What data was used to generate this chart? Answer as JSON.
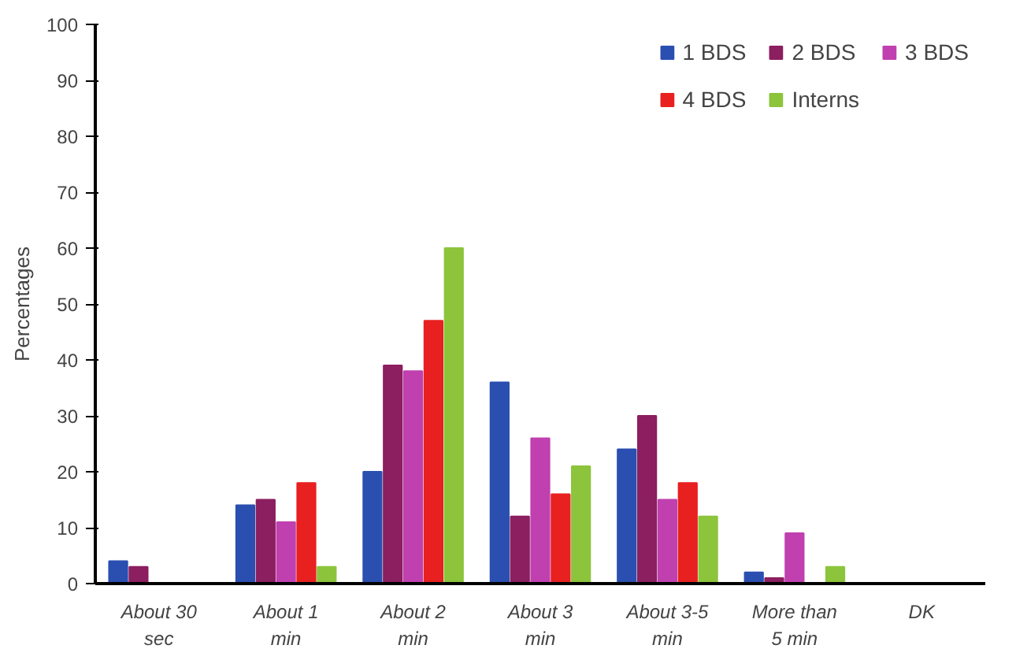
{
  "chart_data": {
    "type": "bar",
    "ylabel": "Percentages",
    "categories": [
      "About 30\nsec",
      "About 1\nmin",
      "About 2\nmin",
      "About 3\nmin",
      "About 3-5\nmin",
      "More than\n5 min",
      "DK"
    ],
    "series": [
      {
        "name": "1 BDS",
        "color": "#2a4fb0",
        "values": [
          4,
          14,
          20,
          36,
          24,
          2,
          0
        ]
      },
      {
        "name": "2 BDS",
        "color": "#8b1f5f",
        "values": [
          3,
          15,
          39,
          12,
          30,
          1,
          0
        ]
      },
      {
        "name": "3 BDS",
        "color": "#c040b0",
        "values": [
          0,
          11,
          38,
          26,
          15,
          9,
          0
        ]
      },
      {
        "name": "4 BDS",
        "color": "#e82020",
        "values": [
          0,
          18,
          47,
          16,
          18,
          0,
          0
        ]
      },
      {
        "name": "Interns",
        "color": "#8cc43c",
        "values": [
          0,
          3,
          60,
          21,
          12,
          3,
          0
        ]
      }
    ],
    "ylim": [
      0,
      100
    ],
    "yticks": [
      0,
      10,
      20,
      30,
      40,
      50,
      60,
      70,
      80,
      90,
      100
    ],
    "grid": false,
    "legend": "top right"
  }
}
